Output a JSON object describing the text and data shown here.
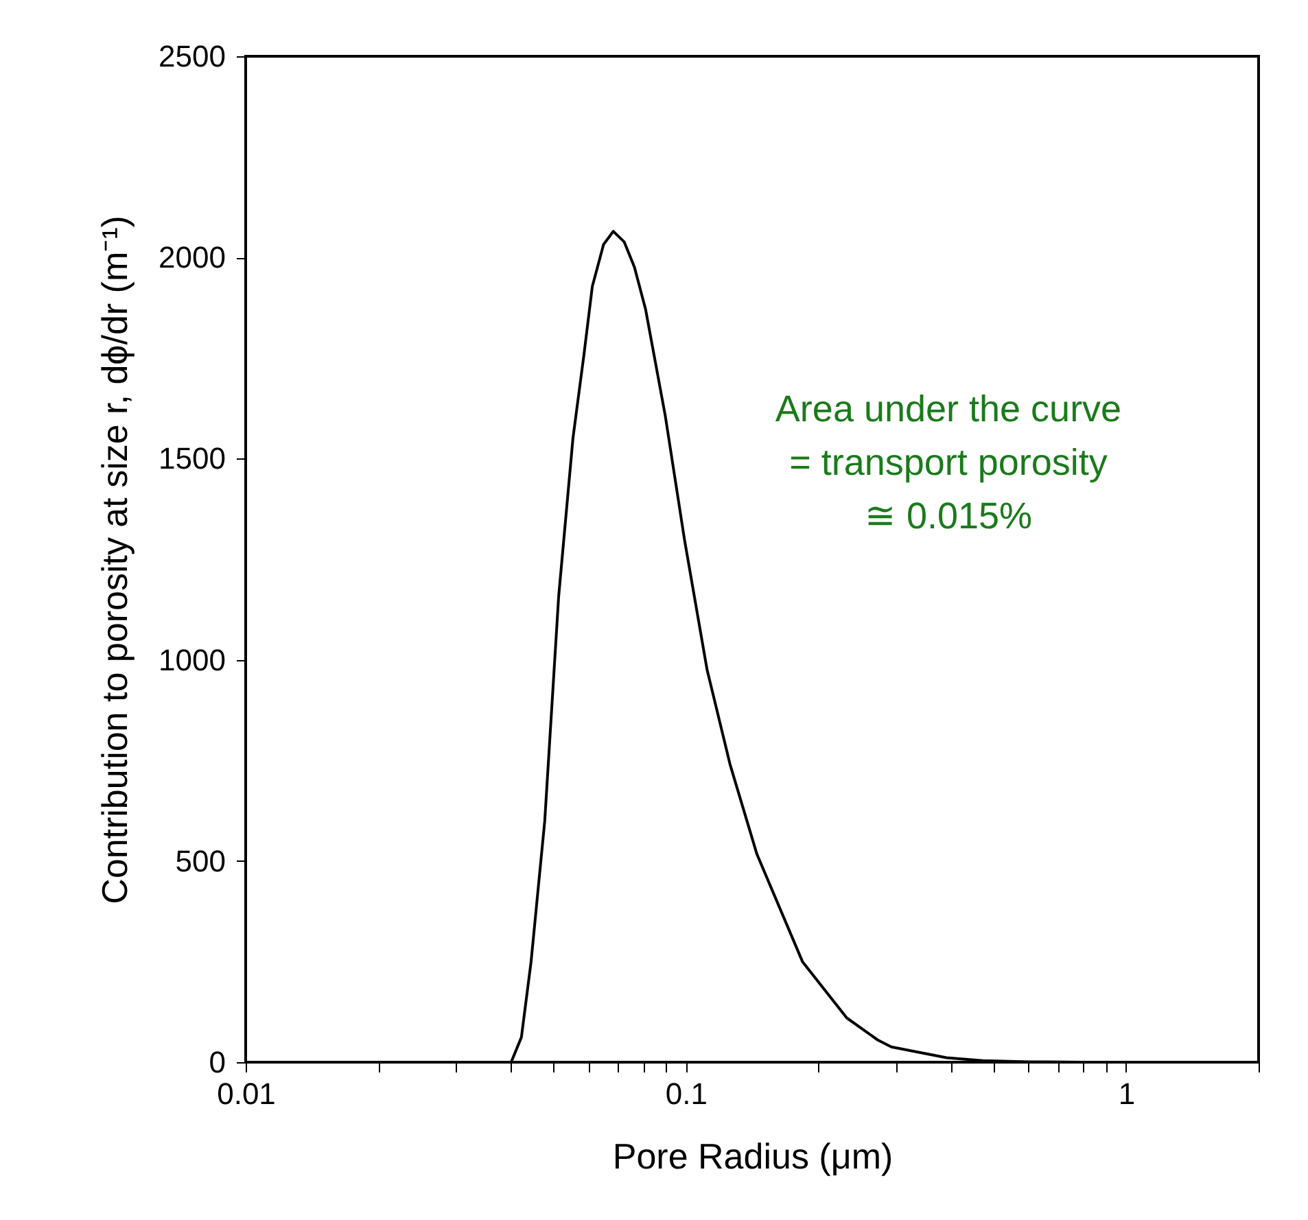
{
  "chart_data": {
    "type": "line",
    "xlabel": "Pore Radius (μm)",
    "ylabel": "Contribution to porosity at size r, dϕ/dr  (m⁻¹)",
    "annotations": [
      "Area under the curve\n= transport porosity\n≅ 0.015%"
    ],
    "x": [
      0.0401,
      0.0423,
      0.0445,
      0.0478,
      0.0514,
      0.0554,
      0.0587,
      0.0613,
      0.065,
      0.0684,
      0.0724,
      0.0764,
      0.081,
      0.0898,
      0.0993,
      0.1117,
      0.126,
      0.145,
      0.184,
      0.232,
      0.273,
      0.293,
      0.391,
      0.473,
      0.601,
      0.8,
      1.0
    ],
    "series": [
      {
        "color": "#000000",
        "values": [
          0,
          62,
          250,
          600,
          1157,
          1551,
          1760,
          1928,
          2032,
          2065,
          2039,
          1976,
          1871,
          1606,
          1298,
          976,
          740,
          517,
          250,
          110,
          55,
          38,
          11,
          4,
          1,
          0,
          0
        ]
      }
    ],
    "log": "x",
    "grid": false,
    "marker": "none",
    "line_style": "solid",
    "xlim": [
      0.01,
      2
    ],
    "xticks": [
      0.01,
      {
        "value": 0.02,
        "label": null
      },
      {
        "value": 0.03,
        "label": null
      },
      {
        "value": 0.04,
        "label": null
      },
      {
        "value": 0.05,
        "label": null
      },
      {
        "value": 0.06,
        "label": null
      },
      {
        "value": 0.07,
        "label": null
      },
      {
        "value": 0.08,
        "label": null
      },
      {
        "value": 0.09,
        "label": null
      },
      0.1,
      {
        "value": 0.2,
        "label": null
      },
      {
        "value": 0.3,
        "label": null
      },
      {
        "value": 0.4,
        "label": null
      },
      {
        "value": 0.5,
        "label": null
      },
      {
        "value": 0.6,
        "label": null
      },
      {
        "value": 0.7,
        "label": null
      },
      {
        "value": 0.8,
        "label": null
      },
      {
        "value": 0.9,
        "label": null
      },
      1,
      {
        "value": 2,
        "label": null
      }
    ],
    "ylim": [
      0,
      2500
    ],
    "yticks": [
      0,
      500,
      1000,
      1500,
      2000,
      2500
    ]
  }
}
